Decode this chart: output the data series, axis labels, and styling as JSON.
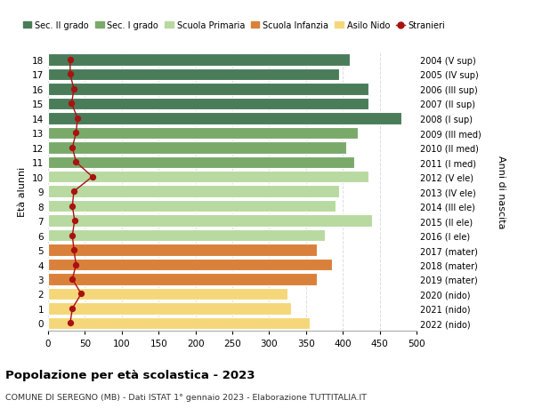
{
  "ages": [
    18,
    17,
    16,
    15,
    14,
    13,
    12,
    11,
    10,
    9,
    8,
    7,
    6,
    5,
    4,
    3,
    2,
    1,
    0
  ],
  "right_labels": [
    "2004 (V sup)",
    "2005 (IV sup)",
    "2006 (III sup)",
    "2007 (II sup)",
    "2008 (I sup)",
    "2009 (III med)",
    "2010 (II med)",
    "2011 (I med)",
    "2012 (V ele)",
    "2013 (IV ele)",
    "2014 (III ele)",
    "2015 (II ele)",
    "2016 (I ele)",
    "2017 (mater)",
    "2018 (mater)",
    "2019 (mater)",
    "2020 (nido)",
    "2021 (nido)",
    "2022 (nido)"
  ],
  "bar_values": [
    410,
    395,
    435,
    435,
    480,
    420,
    405,
    415,
    435,
    395,
    390,
    440,
    375,
    365,
    385,
    365,
    325,
    330,
    355
  ],
  "stranieri_values": [
    30,
    30,
    35,
    32,
    40,
    38,
    33,
    38,
    60,
    35,
    33,
    36,
    33,
    35,
    38,
    33,
    45,
    33,
    30
  ],
  "bar_colors": [
    "#4a7c59",
    "#4a7c59",
    "#4a7c59",
    "#4a7c59",
    "#4a7c59",
    "#7aaa6a",
    "#7aaa6a",
    "#7aaa6a",
    "#b8d9a0",
    "#b8d9a0",
    "#b8d9a0",
    "#b8d9a0",
    "#b8d9a0",
    "#d9813a",
    "#d9813a",
    "#d9813a",
    "#f5d77a",
    "#f5d77a",
    "#f5d77a"
  ],
  "color_sec2": "#4a7c59",
  "color_sec1": "#7aaa6a",
  "color_primaria": "#b8d9a0",
  "color_infanzia": "#d9813a",
  "color_nido": "#f5d77a",
  "color_stranieri": "#aa1111",
  "title": "Popolazione per età scolastica - 2023",
  "subtitle": "COMUNE DI SEREGNO (MB) - Dati ISTAT 1° gennaio 2023 - Elaborazione TUTTITALIA.IT",
  "ylabel_left": "Età alunni",
  "ylabel_right": "Anni di nascita",
  "xlim": [
    0,
    500
  ],
  "xticks": [
    0,
    50,
    100,
    150,
    200,
    250,
    300,
    350,
    400,
    450,
    500
  ],
  "background_color": "#ffffff",
  "plot_background": "#ffffff",
  "grid_color": "#dddddd"
}
